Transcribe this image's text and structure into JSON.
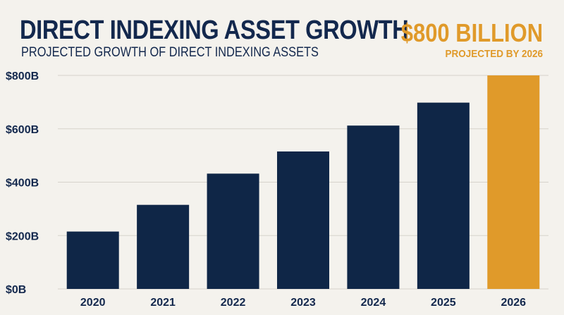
{
  "header": {
    "title": "DIRECT INDEXING ASSET GROWTH",
    "subtitle": "PROJECTED GROWTH OF DIRECT INDEXING ASSETS"
  },
  "callout": {
    "value": "$800 BILLION",
    "label": "PROJECTED BY 2026"
  },
  "colors": {
    "bar": "#0f2647",
    "highlight_bar": "#e09a2a",
    "grid": "#d6d3cc",
    "text": "#13284d"
  },
  "chart_data": {
    "type": "bar",
    "title": "DIRECT INDEXING ASSET GROWTH",
    "subtitle": "PROJECTED GROWTH OF DIRECT INDEXING ASSETS",
    "categories": [
      "2020",
      "2021",
      "2022",
      "2023",
      "2024",
      "2025",
      "2026"
    ],
    "values": [
      215,
      315,
      432,
      515,
      612,
      698,
      800
    ],
    "unit": "$B",
    "highlight_category": "2026",
    "ylim": [
      0,
      800
    ],
    "yticks": [
      0,
      200,
      400,
      600,
      800
    ],
    "ytick_labels": [
      "$0B",
      "$200B",
      "$400B",
      "$600B",
      "$800B"
    ],
    "xlabel": "",
    "ylabel": "",
    "grid": true
  }
}
